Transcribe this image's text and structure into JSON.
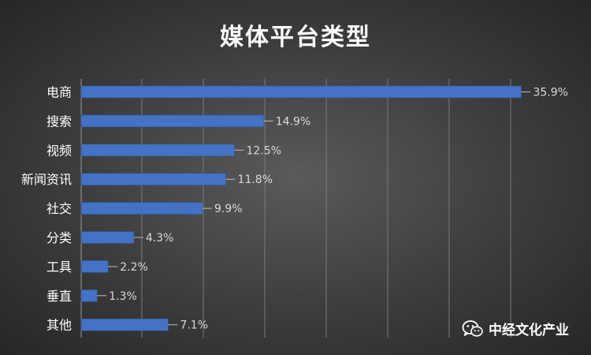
{
  "chart_data": {
    "type": "bar",
    "orientation": "horizontal",
    "title": "媒体平台类型",
    "xlabel": "",
    "ylabel": "",
    "categories": [
      "电商",
      "搜索",
      "视频",
      "新闻资讯",
      "社交",
      "分类",
      "工具",
      "垂直",
      "其他"
    ],
    "values": [
      35.9,
      14.9,
      12.5,
      11.8,
      9.9,
      4.3,
      2.2,
      1.3,
      7.1
    ],
    "value_labels": [
      "35.9%",
      "14.9%",
      "12.5%",
      "11.8%",
      "9.9%",
      "4.3%",
      "2.2%",
      "1.3%",
      "7.1%"
    ],
    "xlim": [
      0,
      36
    ],
    "grid": true,
    "bar_color": "#4472c4",
    "grid_color": "#7a7a7a",
    "label_color": "#ffffff",
    "value_label_color": "#d9d9d9"
  },
  "watermark": {
    "icon": "wechat-icon",
    "text": "中经文化产业"
  }
}
